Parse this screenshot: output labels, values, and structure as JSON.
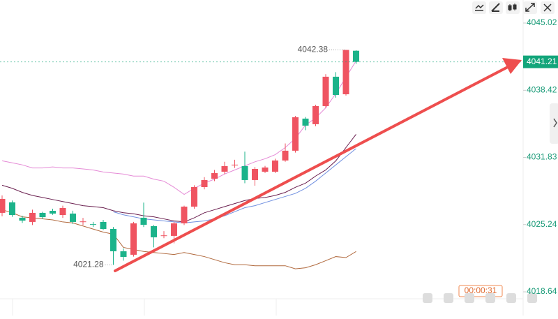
{
  "chart_data": {
    "type": "candlestick",
    "ylim": [
      4017.96,
      4047.28
    ],
    "yticks": [
      4045.02,
      4038.42,
      4031.83,
      4025.24,
      4018.64
    ],
    "up_color": "#ef5461",
    "down_color": "#1bb38a",
    "candles": [
      {
        "open": 4026.39,
        "close": 4027.76,
        "high": 4028.1,
        "low": 4026.05
      },
      {
        "open": 4027.42,
        "close": 4026.18,
        "high": 4027.6,
        "low": 4026.0
      },
      {
        "open": 4025.91,
        "close": 4025.63,
        "high": 4026.1,
        "low": 4025.4
      },
      {
        "open": 4025.5,
        "close": 4026.39,
        "high": 4026.7,
        "low": 4025.2
      },
      {
        "open": 4026.39,
        "close": 4025.97,
        "high": 4026.5,
        "low": 4025.8
      },
      {
        "open": 4026.59,
        "close": 4026.32,
        "high": 4026.8,
        "low": 4026.2
      },
      {
        "open": 4026.18,
        "close": 4026.87,
        "high": 4027.1,
        "low": 4025.9
      },
      {
        "open": 4026.32,
        "close": 4025.5,
        "high": 4026.6,
        "low": 4025.3
      },
      {
        "open": 4025.5,
        "close": 4025.55,
        "high": 4025.9,
        "low": 4025.2
      },
      {
        "open": 4025.28,
        "close": 4025.25,
        "high": 4025.5,
        "low": 4025.0
      },
      {
        "open": 4025.5,
        "close": 4024.81,
        "high": 4025.7,
        "low": 4024.7
      },
      {
        "open": 4024.81,
        "close": 4022.62,
        "high": 4025.0,
        "low": 4021.28
      },
      {
        "open": 4022.62,
        "close": 4022.07,
        "high": 4022.9,
        "low": 4021.7
      },
      {
        "open": 4022.28,
        "close": 4025.36,
        "high": 4025.5,
        "low": 4022.1
      },
      {
        "open": 4025.91,
        "close": 4025.22,
        "high": 4027.4,
        "low": 4025.0
      },
      {
        "open": 4025.09,
        "close": 4023.99,
        "high": 4025.2,
        "low": 4023.0
      },
      {
        "open": 4024.13,
        "close": 4024.18,
        "high": 4024.6,
        "low": 4023.9
      },
      {
        "open": 4024.13,
        "close": 4025.36,
        "high": 4025.5,
        "low": 4023.4
      },
      {
        "open": 4025.36,
        "close": 4027.0,
        "high": 4027.1,
        "low": 4025.2
      },
      {
        "open": 4027.0,
        "close": 4028.92,
        "high": 4029.1,
        "low": 4026.8
      },
      {
        "open": 4028.92,
        "close": 4029.61,
        "high": 4029.9,
        "low": 4028.7
      },
      {
        "open": 4029.74,
        "close": 4030.29,
        "high": 4030.6,
        "low": 4029.5
      },
      {
        "open": 4030.43,
        "close": 4030.98,
        "high": 4031.4,
        "low": 4030.2
      },
      {
        "open": 4031.05,
        "close": 4031.12,
        "high": 4031.6,
        "low": 4030.8
      },
      {
        "open": 4030.98,
        "close": 4029.61,
        "high": 4032.4,
        "low": 4029.3
      },
      {
        "open": 4029.61,
        "close": 4030.7,
        "high": 4030.9,
        "low": 4029.05
      },
      {
        "open": 4030.43,
        "close": 4030.84,
        "high": 4031.0,
        "low": 4030.3
      },
      {
        "open": 4030.43,
        "close": 4031.53,
        "high": 4031.7,
        "low": 4030.3
      },
      {
        "open": 4031.53,
        "close": 4032.49,
        "high": 4033.2,
        "low": 4031.4
      },
      {
        "open": 4032.49,
        "close": 4035.77,
        "high": 4035.9,
        "low": 4032.3
      },
      {
        "open": 4035.64,
        "close": 4034.95,
        "high": 4035.8,
        "low": 4034.5
      },
      {
        "open": 4035.09,
        "close": 4036.87,
        "high": 4037.0,
        "low": 4034.9
      },
      {
        "open": 4036.87,
        "close": 4039.75,
        "high": 4040.0,
        "low": 4036.7
      },
      {
        "open": 4039.75,
        "close": 4037.96,
        "high": 4040.2,
        "low": 4037.7
      },
      {
        "open": 4038.03,
        "close": 4042.38,
        "high": 4042.38,
        "low": 4037.9
      },
      {
        "open": 4042.3,
        "close": 4041.21,
        "high": 4042.35,
        "low": 4041.0
      }
    ],
    "series": [
      {
        "color": "#e58ad6",
        "values": [
          4031.5,
          4031.3,
          4031.1,
          4030.8,
          4030.8,
          4030.9,
          4030.8,
          4030.8,
          4030.7,
          4030.6,
          4030.4,
          4030.3,
          4030.2,
          4030.0,
          4030.0,
          4029.7,
          4029.5,
          4028.9,
          4028.2,
          4028.8,
          4029.3,
          4029.7,
          4030.2,
          4030.6,
          4031.0,
          4031.4,
          4031.7,
          4032.1,
          4032.8,
          4033.7,
          4035.0,
          4035.7,
          4036.7,
          4038.1,
          4039.7,
          4041.3
        ]
      },
      {
        "color": "#6a1f4f",
        "values": [
          4029.1,
          4028.8,
          4028.4,
          4028.1,
          4027.9,
          4027.7,
          4027.5,
          4027.3,
          4027.1,
          4027.0,
          4026.9,
          4026.6,
          4026.4,
          4026.3,
          4026.1,
          4026.0,
          4025.8,
          4025.6,
          4025.5,
          4025.9,
          4026.4,
          4026.7,
          4027.0,
          4027.3,
          4027.6,
          4027.8,
          4027.9,
          4028.1,
          4028.4,
          4028.9,
          4029.3,
          4030.0,
          4030.6,
          4031.5,
          4032.8,
          4034.1
        ]
      },
      {
        "color": "#6f8fe0",
        "values": [
          null,
          null,
          null,
          null,
          null,
          null,
          null,
          null,
          null,
          null,
          null,
          4026.5,
          4026.2,
          4026.0,
          4025.8,
          4025.7,
          4025.6,
          4025.5,
          4025.4,
          4025.5,
          4025.6,
          4025.8,
          4026.1,
          4026.5,
          4026.9,
          4027.1,
          4027.4,
          4027.7,
          4028.0,
          4028.3,
          4028.8,
          4029.5,
          4030.3,
          4031.1,
          4031.9,
          4032.7
        ]
      },
      {
        "color": "#b0683c",
        "values": [
          4026.7,
          4026.4,
          4026.0,
          4025.9,
          4025.8,
          4025.7,
          4025.5,
          4025.4,
          4025.1,
          4024.8,
          4024.5,
          4024.3,
          4023.0,
          4022.8,
          4022.6,
          4022.5,
          4022.4,
          4022.3,
          4022.5,
          4022.3,
          4022.1,
          4021.8,
          4021.5,
          4021.3,
          4021.3,
          4021.2,
          4021.2,
          4021.2,
          4021.2,
          4020.9,
          4021.0,
          4021.3,
          4021.7,
          4022.1,
          4022.0,
          4022.6
        ]
      }
    ],
    "high_label": 4042.38,
    "low_label": 4021.28,
    "last": 4041.21,
    "last_color": "#12a57a",
    "countdown": "00:00:31"
  }
}
